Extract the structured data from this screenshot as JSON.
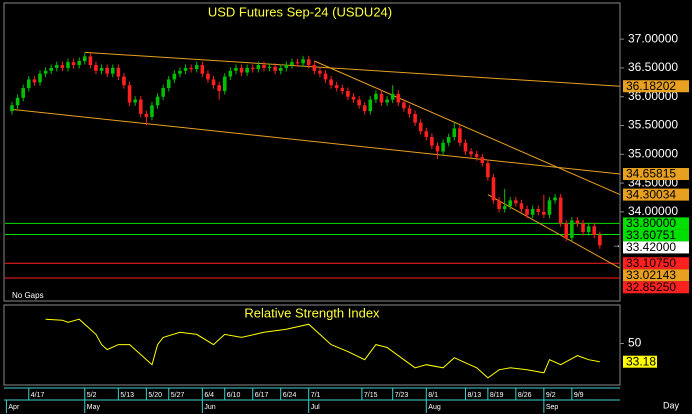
{
  "chart_data": {
    "type": "candlestick",
    "title": "USD Futures Sep-24 (USDU24)",
    "annotation": "No Gaps",
    "x_unit": "Day",
    "xlim": [
      -1.25,
      108.6
    ],
    "ylim": [
      32.47,
      37.61
    ],
    "yticks": [
      {
        "value": 37,
        "label": "37.00000"
      },
      {
        "value": 36.5,
        "label": "36.50000"
      },
      {
        "value": 36,
        "label": "36.00000"
      },
      {
        "value": 35.5,
        "label": "35.50000"
      },
      {
        "value": 35,
        "label": "35.00000"
      },
      {
        "value": 34.5,
        "label": "34.50000"
      },
      {
        "value": 34,
        "label": "34.00000"
      }
    ],
    "xticks": [
      {
        "value": 3,
        "label": "4/17"
      },
      {
        "value": 13,
        "label": "5/2"
      },
      {
        "value": 19,
        "label": "5/13"
      },
      {
        "value": 24,
        "label": "5/20"
      },
      {
        "value": 28,
        "label": "5/27"
      },
      {
        "value": 34,
        "label": "6/4"
      },
      {
        "value": 38,
        "label": "6/10"
      },
      {
        "value": 43,
        "label": "6/17"
      },
      {
        "value": 48,
        "label": "6/24"
      },
      {
        "value": 53,
        "label": "7/1"
      },
      {
        "value": 62.5,
        "label": "7/15"
      },
      {
        "value": 68,
        "label": "7/23"
      },
      {
        "value": 74,
        "label": "8/1"
      },
      {
        "value": 81,
        "label": "8/13"
      },
      {
        "value": 85,
        "label": "8/19"
      },
      {
        "value": 90,
        "label": "8/26"
      },
      {
        "value": 95,
        "label": "9/2"
      },
      {
        "value": 100,
        "label": "9/9"
      }
    ],
    "month_ticks": [
      {
        "value": -1,
        "label": "Apr"
      },
      {
        "value": 13,
        "label": "May"
      },
      {
        "value": 34,
        "label": "Jun"
      },
      {
        "value": 53,
        "label": "Jul"
      },
      {
        "value": 74,
        "label": "Aug"
      },
      {
        "value": 95,
        "label": "Sep"
      }
    ],
    "up_color": "#00c000",
    "down_color": "#ff2020",
    "open": [
      35.75,
      35.85,
      35.98,
      36.15,
      36.3,
      36.25,
      36.4,
      36.45,
      36.5,
      36.55,
      36.5,
      36.6,
      36.55,
      36.62,
      36.7,
      36.55,
      36.45,
      36.5,
      36.4,
      36.5,
      36.35,
      36.2,
      35.9,
      35.95,
      35.7,
      35.65,
      35.85,
      36.0,
      36.15,
      36.3,
      36.4,
      36.45,
      36.5,
      36.48,
      36.55,
      36.4,
      36.3,
      36.2,
      36.1,
      36.35,
      36.45,
      36.5,
      36.42,
      36.5,
      36.48,
      36.55,
      36.5,
      36.52,
      36.45,
      36.5,
      36.55,
      36.6,
      36.58,
      36.65,
      36.55,
      36.45,
      36.4,
      36.3,
      36.2,
      36.15,
      36.1,
      36.0,
      35.95,
      35.85,
      35.75,
      35.95,
      36.05,
      35.9,
      35.95,
      36.05,
      35.9,
      35.8,
      35.7,
      35.55,
      35.4,
      35.3,
      35.15,
      35.05,
      35.2,
      35.3,
      35.45,
      35.2,
      35.05,
      35.0,
      34.95,
      34.85,
      34.6,
      34.2,
      34.05,
      34.1,
      34.2,
      34.15,
      34.05,
      33.95,
      34.05,
      34.0,
      33.95,
      34.2,
      34.25,
      33.8,
      33.55,
      33.85,
      33.8,
      33.65,
      33.75,
      33.6
    ],
    "high": [
      35.91,
      36.04,
      36.21,
      36.36,
      36.36,
      36.46,
      36.51,
      36.56,
      36.61,
      36.61,
      36.66,
      36.66,
      36.68,
      36.76,
      36.76,
      36.61,
      36.56,
      36.56,
      36.56,
      36.56,
      36.41,
      36.26,
      36.01,
      36.01,
      35.76,
      35.91,
      36.06,
      36.21,
      36.36,
      36.46,
      36.51,
      36.56,
      36.56,
      36.61,
      36.61,
      36.46,
      36.36,
      36.26,
      36.41,
      36.51,
      36.56,
      36.56,
      36.56,
      36.56,
      36.61,
      36.61,
      36.58,
      36.58,
      36.56,
      36.61,
      36.66,
      36.66,
      36.71,
      36.71,
      36.61,
      36.51,
      36.46,
      36.36,
      36.26,
      36.21,
      36.16,
      36.06,
      36.01,
      35.91,
      36.01,
      36.11,
      36.11,
      36.01,
      36.2,
      36.11,
      35.96,
      35.86,
      35.76,
      35.61,
      35.46,
      35.36,
      35.21,
      35.26,
      35.36,
      35.55,
      35.51,
      35.26,
      35.11,
      35.06,
      35.01,
      34.91,
      34.66,
      34.26,
      34.4,
      34.26,
      34.26,
      34.21,
      34.11,
      34.11,
      34.11,
      34.3,
      34.26,
      34.31,
      34.31,
      33.86,
      33.91,
      33.91,
      33.86,
      33.81,
      33.81,
      33.66
    ],
    "low": [
      35.69,
      35.79,
      35.92,
      36.09,
      36.19,
      36.19,
      36.34,
      36.39,
      36.44,
      36.44,
      36.44,
      36.49,
      36.49,
      36.56,
      36.49,
      36.39,
      36.39,
      36.34,
      36.34,
      36.29,
      36.14,
      35.84,
      35.84,
      35.64,
      35.5,
      35.59,
      35.79,
      35.94,
      36.09,
      36.24,
      36.34,
      36.39,
      36.42,
      36.42,
      36.34,
      36.24,
      36.14,
      35.95,
      36.04,
      36.29,
      36.39,
      36.36,
      36.36,
      36.42,
      36.42,
      36.44,
      36.44,
      36.39,
      36.39,
      36.44,
      36.49,
      36.52,
      36.52,
      36.49,
      36.39,
      36.34,
      36.24,
      36.14,
      36.09,
      36.04,
      35.94,
      35.89,
      35.79,
      35.69,
      35.69,
      35.89,
      35.84,
      35.84,
      35.89,
      35.84,
      35.74,
      35.64,
      35.49,
      35.34,
      35.24,
      35.09,
      34.92,
      34.99,
      35.14,
      35.24,
      35.14,
      34.99,
      34.94,
      34.89,
      34.79,
      34.54,
      34.14,
      33.99,
      33.99,
      34.04,
      34.09,
      33.99,
      33.89,
      33.89,
      33.94,
      33.89,
      33.89,
      34.14,
      33.74,
      33.49,
      33.49,
      33.74,
      33.59,
      33.59,
      33.54,
      33.36
    ],
    "close": [
      35.85,
      35.98,
      36.15,
      36.3,
      36.25,
      36.4,
      36.45,
      36.5,
      36.55,
      36.5,
      36.6,
      36.55,
      36.62,
      36.7,
      36.55,
      36.45,
      36.5,
      36.4,
      36.5,
      36.35,
      36.2,
      35.9,
      35.95,
      35.7,
      35.65,
      35.85,
      36.0,
      36.15,
      36.3,
      36.4,
      36.45,
      36.5,
      36.48,
      36.55,
      36.4,
      36.3,
      36.2,
      36.1,
      36.35,
      36.45,
      36.5,
      36.42,
      36.5,
      36.48,
      36.55,
      36.5,
      36.52,
      36.45,
      36.5,
      36.55,
      36.6,
      36.58,
      36.65,
      36.55,
      36.45,
      36.4,
      36.3,
      36.2,
      36.15,
      36.1,
      36.0,
      35.95,
      35.85,
      35.75,
      35.95,
      36.05,
      35.9,
      35.95,
      36.05,
      35.9,
      35.8,
      35.7,
      35.55,
      35.4,
      35.3,
      35.15,
      35.05,
      35.2,
      35.3,
      35.45,
      35.2,
      35.05,
      35.0,
      34.95,
      34.85,
      34.6,
      34.2,
      34.05,
      34.1,
      34.2,
      34.15,
      34.05,
      33.95,
      34.05,
      34.0,
      33.95,
      34.2,
      34.25,
      33.8,
      33.55,
      33.85,
      33.8,
      33.65,
      33.75,
      33.6,
      33.42
    ],
    "trendlines": [
      {
        "x": 13,
        "values": [
          36.77,
          36.18202
        ],
        "color": "#e8a020"
      },
      {
        "x": 0,
        "values": [
          35.78,
          34.65815
        ],
        "color": "#e8a020"
      },
      {
        "x": 54,
        "values": [
          36.62,
          34.30034
        ],
        "color": "#e8a020"
      },
      {
        "x": 85,
        "values": [
          34.3,
          33.02143
        ],
        "color": "#e8a020"
      }
    ],
    "levels": [
      {
        "value": 33.8,
        "label": "33.80000",
        "color": "#00e000"
      },
      {
        "value": 33.60751,
        "label": "33.60751",
        "color": "#00e000"
      },
      {
        "value": 33.1075,
        "label": "33.10750",
        "color": "#ff2020"
      },
      {
        "value": 32.8525,
        "label": "32.85250",
        "color": "#ff2020"
      }
    ],
    "last": {
      "value": 33.42,
      "label": "33.42000",
      "color": "#ffffff"
    },
    "rsi": {
      "type": "line",
      "title": "Relative Strength Index",
      "color": "#ffff00",
      "ylim": [
        12.6,
        84.6
      ],
      "yticks": [
        50
      ],
      "x": [
        6,
        9,
        10,
        12,
        15,
        16,
        17,
        19,
        21,
        23,
        25,
        26,
        27,
        30,
        33,
        36,
        38,
        41,
        45,
        49,
        53,
        55,
        57,
        60,
        63,
        65,
        67,
        70,
        72,
        74,
        77,
        79,
        81,
        83,
        85,
        87,
        89,
        92,
        95,
        96,
        98,
        101,
        103,
        105
      ],
      "values": [
        72.4,
        71.5,
        69.6,
        72.4,
        58.4,
        49,
        44.4,
        49,
        49,
        39.7,
        30.4,
        49,
        55.6,
        60.3,
        58.4,
        49,
        58.4,
        55.6,
        60.3,
        63.1,
        67.8,
        58.4,
        49,
        42.5,
        35,
        49,
        46.3,
        35,
        27.6,
        30.4,
        27.6,
        36.9,
        32.2,
        27.6,
        18.2,
        25.7,
        27.6,
        25.7,
        22.9,
        35,
        30.4,
        38.8,
        35,
        33.18
      ]
    }
  }
}
